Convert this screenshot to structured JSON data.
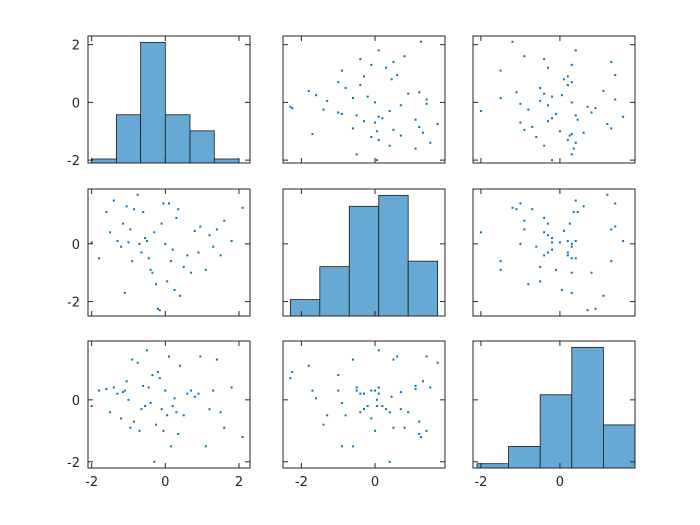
{
  "chart_data": {
    "type": "scatter-matrix",
    "title": "",
    "colors": {
      "bar": "#67a9d5",
      "point": "#0072bd",
      "edge": "#1a1a1a"
    },
    "variables": [
      {
        "range": [
          -2.1,
          2.3
        ],
        "ticks": [
          -2,
          0,
          2
        ]
      },
      {
        "range": [
          -2.5,
          1.9
        ],
        "ticks": [
          -2,
          0
        ]
      },
      {
        "range": [
          -2.2,
          1.9
        ],
        "ticks": [
          -2,
          0
        ]
      }
    ],
    "tick_label_text": {
      "r0": [
        "2",
        "0",
        "-2"
      ],
      "r1": [
        "0",
        "-2"
      ],
      "r2": [
        "0",
        "-2"
      ],
      "c0": [
        "-2",
        "0",
        "2"
      ],
      "c1": [
        "-2",
        "0"
      ],
      "c2": [
        "-2",
        "0"
      ]
    },
    "histograms": [
      {
        "edges": [
          -2.0,
          -1.33,
          -0.67,
          0.0,
          0.67,
          1.33,
          2.0
        ],
        "counts": [
          1,
          12,
          30,
          12,
          8,
          1
        ]
      },
      {
        "edges": [
          -2.3,
          -1.5,
          -0.7,
          0.1,
          0.9,
          1.7
        ],
        "counts": [
          3,
          9,
          20,
          22,
          10
        ]
      },
      {
        "edges": [
          -2.1,
          -1.3,
          -0.5,
          0.3,
          1.1,
          1.9
        ],
        "counts": [
          1,
          5,
          17,
          28,
          10
        ]
      }
    ],
    "points": [
      [
        -2.0,
        0.05,
        -0.2
      ],
      [
        -1.8,
        -0.5,
        0.3
      ],
      [
        -1.6,
        1.1,
        0.35
      ],
      [
        -1.5,
        0.4,
        -0.4
      ],
      [
        -1.4,
        1.5,
        0.4
      ],
      [
        -1.3,
        0.1,
        0.2
      ],
      [
        -1.2,
        -0.1,
        -0.6
      ],
      [
        -1.15,
        0.7,
        0.25
      ],
      [
        -1.1,
        -1.7,
        0.3
      ],
      [
        -1.05,
        1.3,
        0.6
      ],
      [
        -1.0,
        0.05,
        0.0
      ],
      [
        -0.95,
        0.5,
        -0.9
      ],
      [
        -0.9,
        -0.6,
        1.3
      ],
      [
        -0.85,
        1.2,
        -0.7
      ],
      [
        -0.75,
        1.7,
        1.2
      ],
      [
        -0.7,
        0.0,
        -1.0
      ],
      [
        -0.65,
        -0.3,
        -0.3
      ],
      [
        -0.6,
        1.1,
        0.45
      ],
      [
        -0.55,
        0.2,
        -0.2
      ],
      [
        -0.5,
        0.1,
        1.6
      ],
      [
        -0.45,
        -0.5,
        0.4
      ],
      [
        -0.4,
        -0.9,
        -0.1
      ],
      [
        -0.35,
        -1.0,
        0.8
      ],
      [
        -0.3,
        0.4,
        -2.0
      ],
      [
        -0.25,
        -1.4,
        -0.8
      ],
      [
        -0.2,
        -2.25,
        0.9
      ],
      [
        -0.15,
        -2.3,
        0.7
      ],
      [
        -0.1,
        0.7,
        -0.3
      ],
      [
        -0.05,
        1.4,
        -1.0
      ],
      [
        0.0,
        0.0,
        0.3
      ],
      [
        0.05,
        -1.3,
        -0.5
      ],
      [
        0.1,
        1.4,
        1.4
      ],
      [
        0.15,
        -0.6,
        -1.5
      ],
      [
        0.2,
        -0.2,
        -0.2
      ],
      [
        0.25,
        -1.6,
        0.05
      ],
      [
        0.3,
        0.9,
        -0.4
      ],
      [
        0.35,
        1.2,
        -1.1
      ],
      [
        0.4,
        -1.8,
        1.1
      ],
      [
        0.5,
        -0.8,
        -0.5
      ],
      [
        0.6,
        -0.4,
        0.2
      ],
      [
        0.7,
        -1.0,
        0.3
      ],
      [
        0.8,
        0.45,
        0.1
      ],
      [
        0.9,
        -0.3,
        0.2
      ],
      [
        0.95,
        0.6,
        1.4
      ],
      [
        1.1,
        -0.9,
        -1.5
      ],
      [
        1.2,
        0.3,
        -0.3
      ],
      [
        1.3,
        -0.1,
        0.3
      ],
      [
        1.4,
        0.5,
        1.3
      ],
      [
        1.5,
        -0.4,
        -0.4
      ],
      [
        1.6,
        0.8,
        -0.9
      ],
      [
        1.8,
        0.1,
        0.4
      ],
      [
        2.1,
        1.25,
        -1.2
      ]
    ]
  }
}
